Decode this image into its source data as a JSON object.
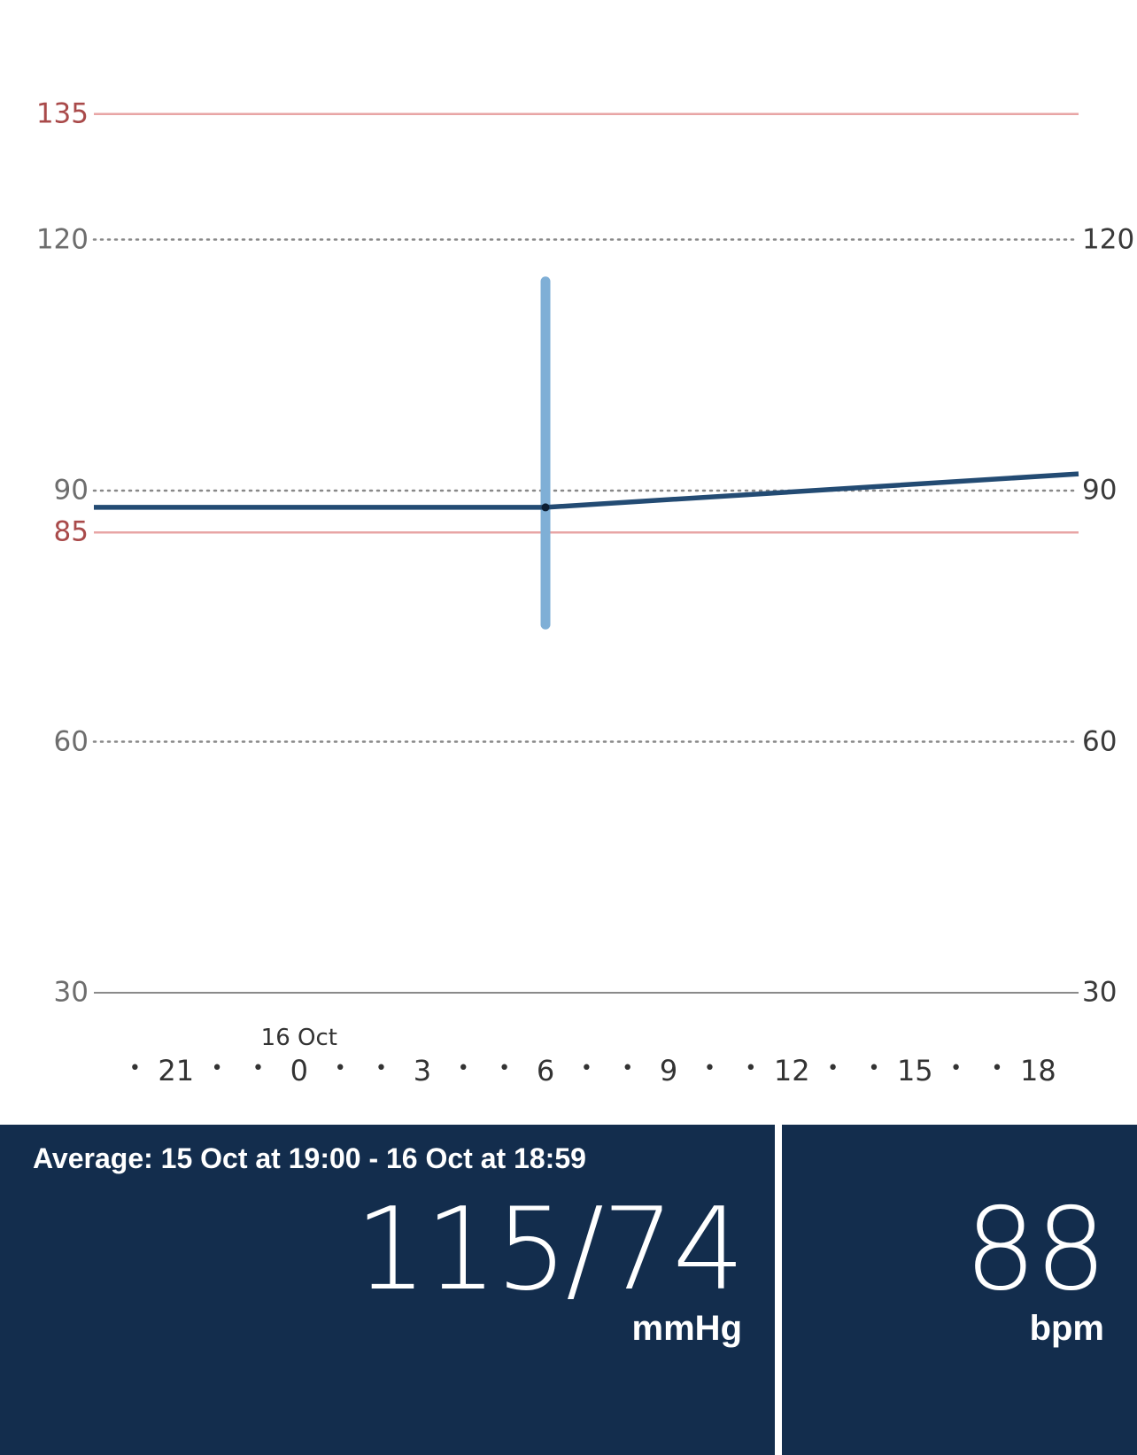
{
  "chart_data": {
    "type": "line",
    "ylim": [
      30,
      150
    ],
    "y_ticks_left": [
      30,
      60,
      90,
      120
    ],
    "y_ticks_right": [
      30,
      60,
      90,
      120
    ],
    "reference_lines": [
      {
        "value": 135,
        "label": "135",
        "color": "#e8a5a5"
      },
      {
        "value": 85,
        "label": "85",
        "color": "#e8a5a5"
      }
    ],
    "x_ticks": [
      "21",
      "0",
      "3",
      "6",
      "9",
      "12",
      "15",
      "18"
    ],
    "day_label": "16 Oct",
    "series": [
      {
        "type": "line",
        "color": "#234b73",
        "x": [
          "19:00",
          "06:00",
          "18:59"
        ],
        "y": [
          88,
          88,
          92
        ]
      },
      {
        "type": "range",
        "color": "#7fafd6",
        "x": "06:00",
        "low": 74,
        "high": 115
      }
    ]
  },
  "summary": {
    "average_label": "Average: 15 Oct at 19:00 - 16 Oct at 18:59",
    "blood_pressure": "115/74",
    "bp_unit": "mmHg",
    "heart_rate": "88",
    "hr_unit": "bpm"
  }
}
